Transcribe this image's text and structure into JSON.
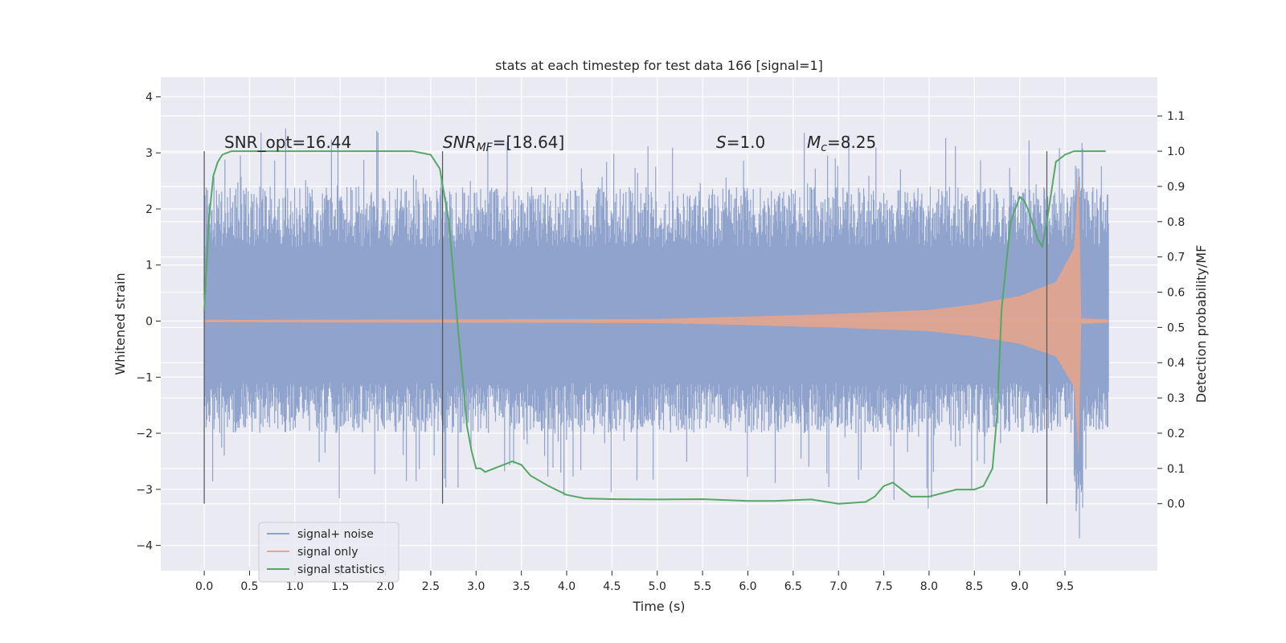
{
  "chart_data": {
    "type": "line",
    "title": "stats at each timestep for test data 166 [signal=1]",
    "xlabel": "Time (s)",
    "ylabel": "Whitened strain",
    "ylabel_right": "Detection probability/MF",
    "xlim": [
      -0.48,
      10.52
    ],
    "ylim": [
      -4.45,
      4.35
    ],
    "ylim_right": [
      -0.19,
      1.21
    ],
    "x_ticks": [
      "0.0",
      "0.5",
      "1.0",
      "1.5",
      "2.0",
      "2.5",
      "3.0",
      "3.5",
      "4.0",
      "4.5",
      "5.0",
      "5.5",
      "6.0",
      "6.5",
      "7.0",
      "7.5",
      "8.0",
      "8.5",
      "9.0",
      "9.5"
    ],
    "y_ticks": [
      "4",
      "3",
      "2",
      "1",
      "0",
      "−1",
      "−2",
      "−3",
      "−4"
    ],
    "y_right_ticks": [
      "1.1",
      "1.0",
      "0.9",
      "0.8",
      "0.7",
      "0.6",
      "0.5",
      "0.4",
      "0.3",
      "0.2",
      "0.1",
      "0.0"
    ],
    "grid": true,
    "legend_position": "lower-left",
    "annotations": {
      "snr_opt": "SNR_opt=16.44",
      "snr_mf_prefix": "SNR",
      "snr_mf_sub": "MF",
      "snr_mf_value": "=[18.64]",
      "s_prefix": "S",
      "s_value": "=1.0",
      "mc_prefix": "M",
      "mc_sub": "c",
      "mc_value": "=8.25"
    },
    "vertical_markers": [
      0.0,
      2.63,
      9.3
    ],
    "series": [
      {
        "name": "signal+ noise",
        "color": "#8fa3cc",
        "envelope_low": -2.0,
        "envelope_high": 2.4,
        "x_range": [
          0.0,
          9.98
        ]
      },
      {
        "name": "signal only",
        "color": "#e4a48d",
        "amplitude": [
          [
            0.0,
            0.02
          ],
          [
            5.0,
            0.04
          ],
          [
            6.0,
            0.08
          ],
          [
            7.0,
            0.13
          ],
          [
            8.0,
            0.2
          ],
          [
            8.5,
            0.3
          ],
          [
            9.0,
            0.45
          ],
          [
            9.4,
            0.7
          ],
          [
            9.6,
            1.3
          ],
          [
            9.65,
            2.7
          ],
          [
            9.68,
            0.05
          ],
          [
            9.98,
            0.03
          ]
        ]
      },
      {
        "name": "signal statistics",
        "color": "#55a868",
        "x": [
          0.0,
          0.05,
          0.1,
          0.15,
          0.2,
          0.3,
          0.5,
          1.0,
          1.5,
          2.0,
          2.3,
          2.5,
          2.6,
          2.7,
          2.8,
          2.9,
          2.95,
          3.0,
          3.05,
          3.1,
          3.2,
          3.3,
          3.4,
          3.5,
          3.6,
          3.8,
          4.0,
          4.2,
          4.5,
          5.0,
          5.5,
          6.0,
          6.3,
          6.5,
          6.7,
          7.0,
          7.3,
          7.4,
          7.5,
          7.6,
          7.7,
          7.8,
          7.9,
          8.0,
          8.3,
          8.5,
          8.6,
          8.7,
          8.75,
          8.8,
          8.9,
          9.0,
          9.05,
          9.1,
          9.2,
          9.25,
          9.3,
          9.4,
          9.5,
          9.6,
          9.7,
          9.8,
          9.9,
          9.95
        ],
        "y": [
          0.55,
          0.8,
          0.93,
          0.97,
          0.99,
          1.0,
          1.0,
          1.0,
          1.0,
          1.0,
          1.0,
          0.99,
          0.95,
          0.8,
          0.5,
          0.22,
          0.15,
          0.1,
          0.1,
          0.09,
          0.1,
          0.11,
          0.12,
          0.11,
          0.08,
          0.05,
          0.025,
          0.015,
          0.013,
          0.012,
          0.013,
          0.008,
          0.008,
          0.01,
          0.012,
          0.0,
          0.005,
          0.02,
          0.05,
          0.06,
          0.04,
          0.02,
          0.02,
          0.02,
          0.04,
          0.04,
          0.05,
          0.1,
          0.25,
          0.55,
          0.8,
          0.87,
          0.86,
          0.83,
          0.75,
          0.73,
          0.8,
          0.97,
          0.99,
          1.0,
          1.0,
          1.0,
          1.0,
          1.0
        ]
      }
    ]
  }
}
